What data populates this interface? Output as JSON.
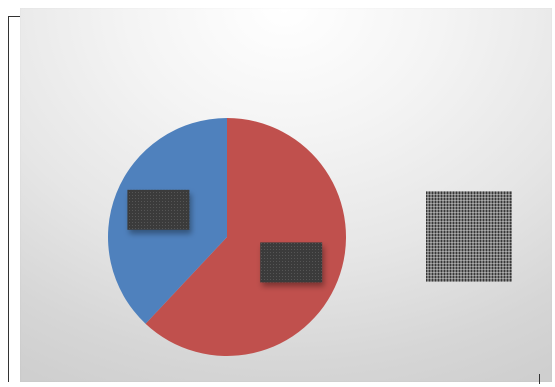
{
  "chart_data": {
    "type": "pie",
    "categories": [
      "",
      ""
    ],
    "values": [
      62,
      38
    ],
    "colors": [
      "#c0504d",
      "#4f81bd"
    ],
    "title": "",
    "legend": "right",
    "data_labels_redacted": true
  }
}
